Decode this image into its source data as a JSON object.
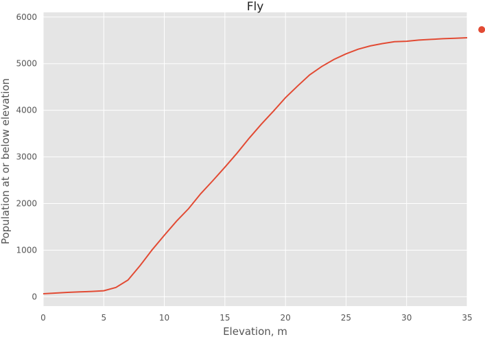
{
  "chart_data": {
    "type": "line",
    "title": "Fly",
    "xlabel": "Elevation, m",
    "ylabel": "Population at or below elevation",
    "xlim": [
      0,
      35
    ],
    "ylim": [
      -200,
      6100
    ],
    "xticks": [
      0,
      5,
      10,
      15,
      20,
      25,
      30,
      35
    ],
    "yticks": [
      0,
      1000,
      2000,
      3000,
      4000,
      5000,
      6000
    ],
    "grid": true,
    "style": "ggplot",
    "colors": {
      "series": "#E24A33",
      "background": "#E5E5E5",
      "grid": "#FFFFFF",
      "text": "#555555"
    },
    "series": [
      {
        "x": [
          0,
          1,
          2,
          3,
          4,
          5,
          6,
          7,
          8,
          9,
          10,
          11,
          12,
          13,
          14,
          15,
          16,
          17,
          18,
          19,
          20,
          21,
          22,
          23,
          24,
          25,
          26,
          27,
          28,
          29,
          30,
          31,
          32,
          33,
          34,
          35
        ],
        "y": [
          65,
          80,
          95,
          105,
          115,
          130,
          200,
          360,
          670,
          1010,
          1320,
          1620,
          1890,
          2210,
          2490,
          2780,
          3080,
          3400,
          3700,
          3980,
          4270,
          4520,
          4760,
          4940,
          5090,
          5210,
          5310,
          5380,
          5430,
          5470,
          5480,
          5505,
          5520,
          5535,
          5545,
          5555
        ]
      }
    ],
    "extra_points": [
      {
        "x": 36.2,
        "y": 5730
      }
    ]
  }
}
